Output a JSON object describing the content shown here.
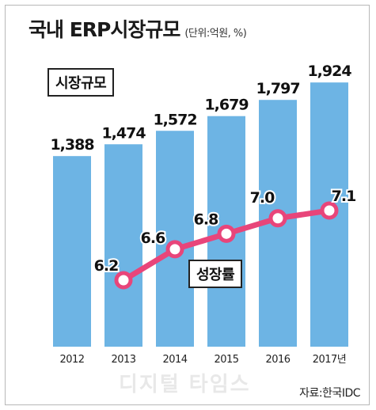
{
  "header": {
    "title": "국내 ERP시장규모",
    "unit": "(단위:억원, %)"
  },
  "legend": {
    "market_label": "시장규모",
    "growth_label": "성장률"
  },
  "source": "자료:한국IDC",
  "watermark": "디지털 타임스",
  "colors": {
    "bar": "#6db4e4",
    "line": "#e8457a",
    "marker_fill": "#ffffff"
  },
  "chart_data": {
    "type": "bar",
    "categories": [
      "2012",
      "2013",
      "2014",
      "2015",
      "2016",
      "2017년"
    ],
    "series": [
      {
        "name": "시장규모",
        "type": "bar",
        "values": [
          1388,
          1474,
          1572,
          1679,
          1797,
          1924
        ],
        "value_labels": [
          "1,388",
          "1,474",
          "1,572",
          "1,679",
          "1,797",
          "1,924"
        ]
      },
      {
        "name": "성장률",
        "type": "line",
        "values": [
          null,
          6.2,
          6.6,
          6.8,
          7.0,
          7.1
        ],
        "value_labels": [
          "",
          "6.2",
          "6.6",
          "6.8",
          "7.0",
          "7.1"
        ]
      }
    ]
  }
}
